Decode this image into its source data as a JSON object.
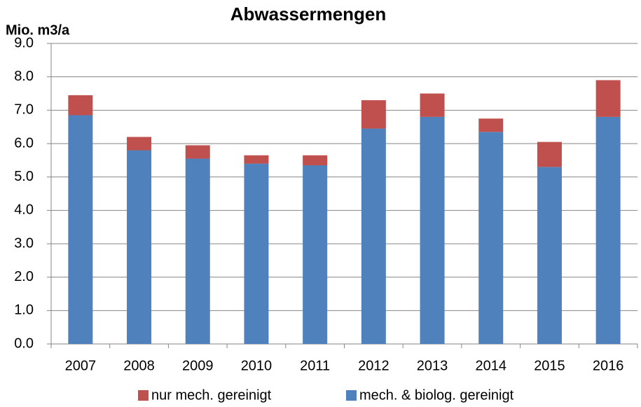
{
  "chart_data": {
    "type": "stacked_bar",
    "title": "Abwassermengen",
    "y_label": "Mio. m3/a",
    "categories": [
      "2007",
      "2008",
      "2009",
      "2010",
      "2011",
      "2012",
      "2013",
      "2014",
      "2015",
      "2016"
    ],
    "series": [
      {
        "name": "mech. & biolog. gereinigt",
        "color": "#4f81bd",
        "values": [
          6.85,
          5.8,
          5.55,
          5.4,
          5.35,
          6.45,
          6.8,
          6.35,
          5.3,
          6.8
        ]
      },
      {
        "name": "nur mech. gereinigt",
        "color": "#c0504d",
        "values": [
          0.6,
          0.4,
          0.4,
          0.25,
          0.3,
          0.85,
          0.7,
          0.4,
          0.75,
          1.1
        ]
      }
    ],
    "ylim": [
      0,
      9
    ],
    "yticks": [
      {
        "value": 0,
        "label": "0.0"
      },
      {
        "value": 1,
        "label": "1.0"
      },
      {
        "value": 2,
        "label": "2.0"
      },
      {
        "value": 3,
        "label": "3.0"
      },
      {
        "value": 4,
        "label": "4.0"
      },
      {
        "value": 5,
        "label": "5.0"
      },
      {
        "value": 6,
        "label": "6.0"
      },
      {
        "value": 7,
        "label": "7.0"
      },
      {
        "value": 8,
        "label": "8.0"
      },
      {
        "value": 9,
        "label": "9.0"
      }
    ],
    "grid": true
  }
}
